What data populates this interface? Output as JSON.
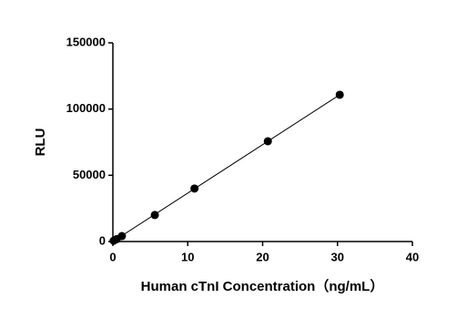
{
  "chart_data": {
    "type": "scatter",
    "x_label": "Human cTnI Concentration（ng/mL）",
    "y_label": "RLU",
    "series": [
      {
        "x": [
          0.1,
          0.5,
          1.2,
          5.6,
          10.9,
          20.7,
          30.3
        ],
        "values": [
          600,
          1800,
          4100,
          20000,
          40000,
          75700,
          110800
        ],
        "color": "#000000"
      }
    ],
    "trendline": {
      "x": [
        0,
        30.3
      ],
      "values": [
        0,
        110800
      ],
      "color": "#000000"
    },
    "xlim": [
      0,
      40
    ],
    "xticks": [
      0,
      10,
      20,
      30,
      40
    ],
    "ylim": [
      0,
      150000
    ],
    "yticks": [
      0,
      50000,
      100000,
      150000
    ],
    "grid": false
  }
}
